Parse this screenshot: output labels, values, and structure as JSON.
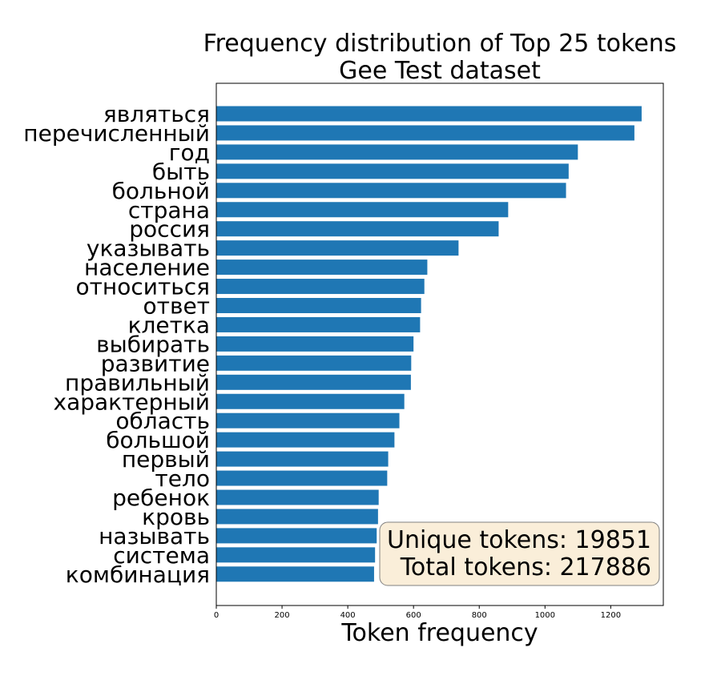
{
  "chart_data": {
    "type": "bar",
    "orientation": "horizontal",
    "title": "Frequency distribution of Top 25 tokens",
    "subtitle": "Gee Test dataset",
    "xlabel": "Token frequency",
    "ylabel": "",
    "xlim": [
      0,
      1360
    ],
    "xticks": [
      0,
      200,
      400,
      600,
      800,
      1000,
      1200
    ],
    "grid": false,
    "bar_color": "#1f77b4",
    "categories": [
      "являться",
      "перечисленный",
      "год",
      "быть",
      "больной",
      "страна",
      "россия",
      "указывать",
      "население",
      "относиться",
      "ответ",
      "клетка",
      "выбирать",
      "развитие",
      "правильный",
      "характерный",
      "область",
      "большой",
      "первый",
      "тело",
      "ребенок",
      "кровь",
      "называть",
      "система",
      "комбинация"
    ],
    "values": [
      1294,
      1272,
      1100,
      1072,
      1064,
      888,
      859,
      737,
      642,
      633,
      623,
      620,
      600,
      593,
      592,
      572,
      557,
      542,
      523,
      520,
      494,
      492,
      488,
      483,
      480
    ]
  },
  "stats_box": {
    "unique_line": "Unique tokens: 19851",
    "total_line": "Total tokens: 217886",
    "fill": "#f5deb3",
    "border": "#808080"
  }
}
